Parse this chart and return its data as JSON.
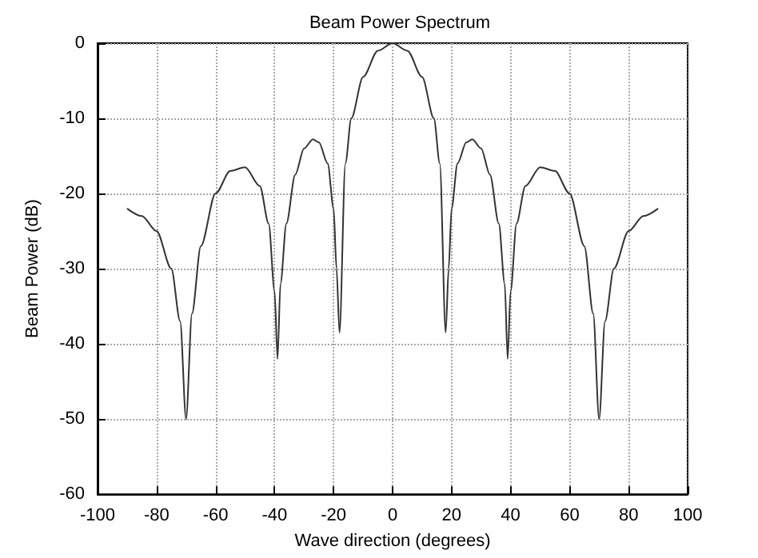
{
  "chart_data": {
    "type": "line",
    "title": "Beam Power Spectrum",
    "xlabel": "Wave direction (degrees)",
    "ylabel": "Beam Power (dB)",
    "x": [
      -90,
      -85,
      -80,
      -75,
      -72,
      -70,
      -68,
      -65,
      -60,
      -55,
      -50,
      -45,
      -42,
      -40,
      -39,
      -38,
      -36,
      -33,
      -30,
      -27,
      -25,
      -22,
      -20,
      -19,
      -18,
      -16,
      -14,
      -10,
      -5,
      0,
      5,
      10,
      14,
      16,
      18,
      19,
      20,
      22,
      25,
      27,
      30,
      33,
      36,
      38,
      39,
      40,
      42,
      45,
      50,
      55,
      60,
      65,
      68,
      70,
      72,
      75,
      80,
      85,
      90
    ],
    "series": [
      {
        "color": "#333333",
        "values": [
          -22,
          -23,
          -25,
          -30,
          -37,
          -50,
          -36,
          -27,
          -20,
          -17,
          -16.5,
          -19,
          -24,
          -33,
          -42,
          -32,
          -24,
          -17.5,
          -14,
          -12.8,
          -13.2,
          -16,
          -22,
          -30,
          -38.5,
          -16,
          -10,
          -4.5,
          -1,
          0,
          -1,
          -4.5,
          -10,
          -16,
          -38.5,
          -30,
          -22,
          -16,
          -13.2,
          -12.8,
          -14,
          -17.5,
          -24,
          -32,
          -42,
          -33,
          -24,
          -19,
          -16.5,
          -17,
          -20,
          -27,
          -36,
          -50,
          -37,
          -30,
          -25,
          -23,
          -22
        ]
      }
    ],
    "xlim": [
      -100,
      100
    ],
    "xticks": [
      -100,
      -80,
      -60,
      -40,
      -20,
      0,
      20,
      40,
      60,
      80,
      100
    ],
    "ylim": [
      -60,
      0
    ],
    "yticks": [
      -60,
      -50,
      -40,
      -30,
      -20,
      -10,
      0
    ],
    "grid": true,
    "marker": "none",
    "line_style": "solid"
  }
}
